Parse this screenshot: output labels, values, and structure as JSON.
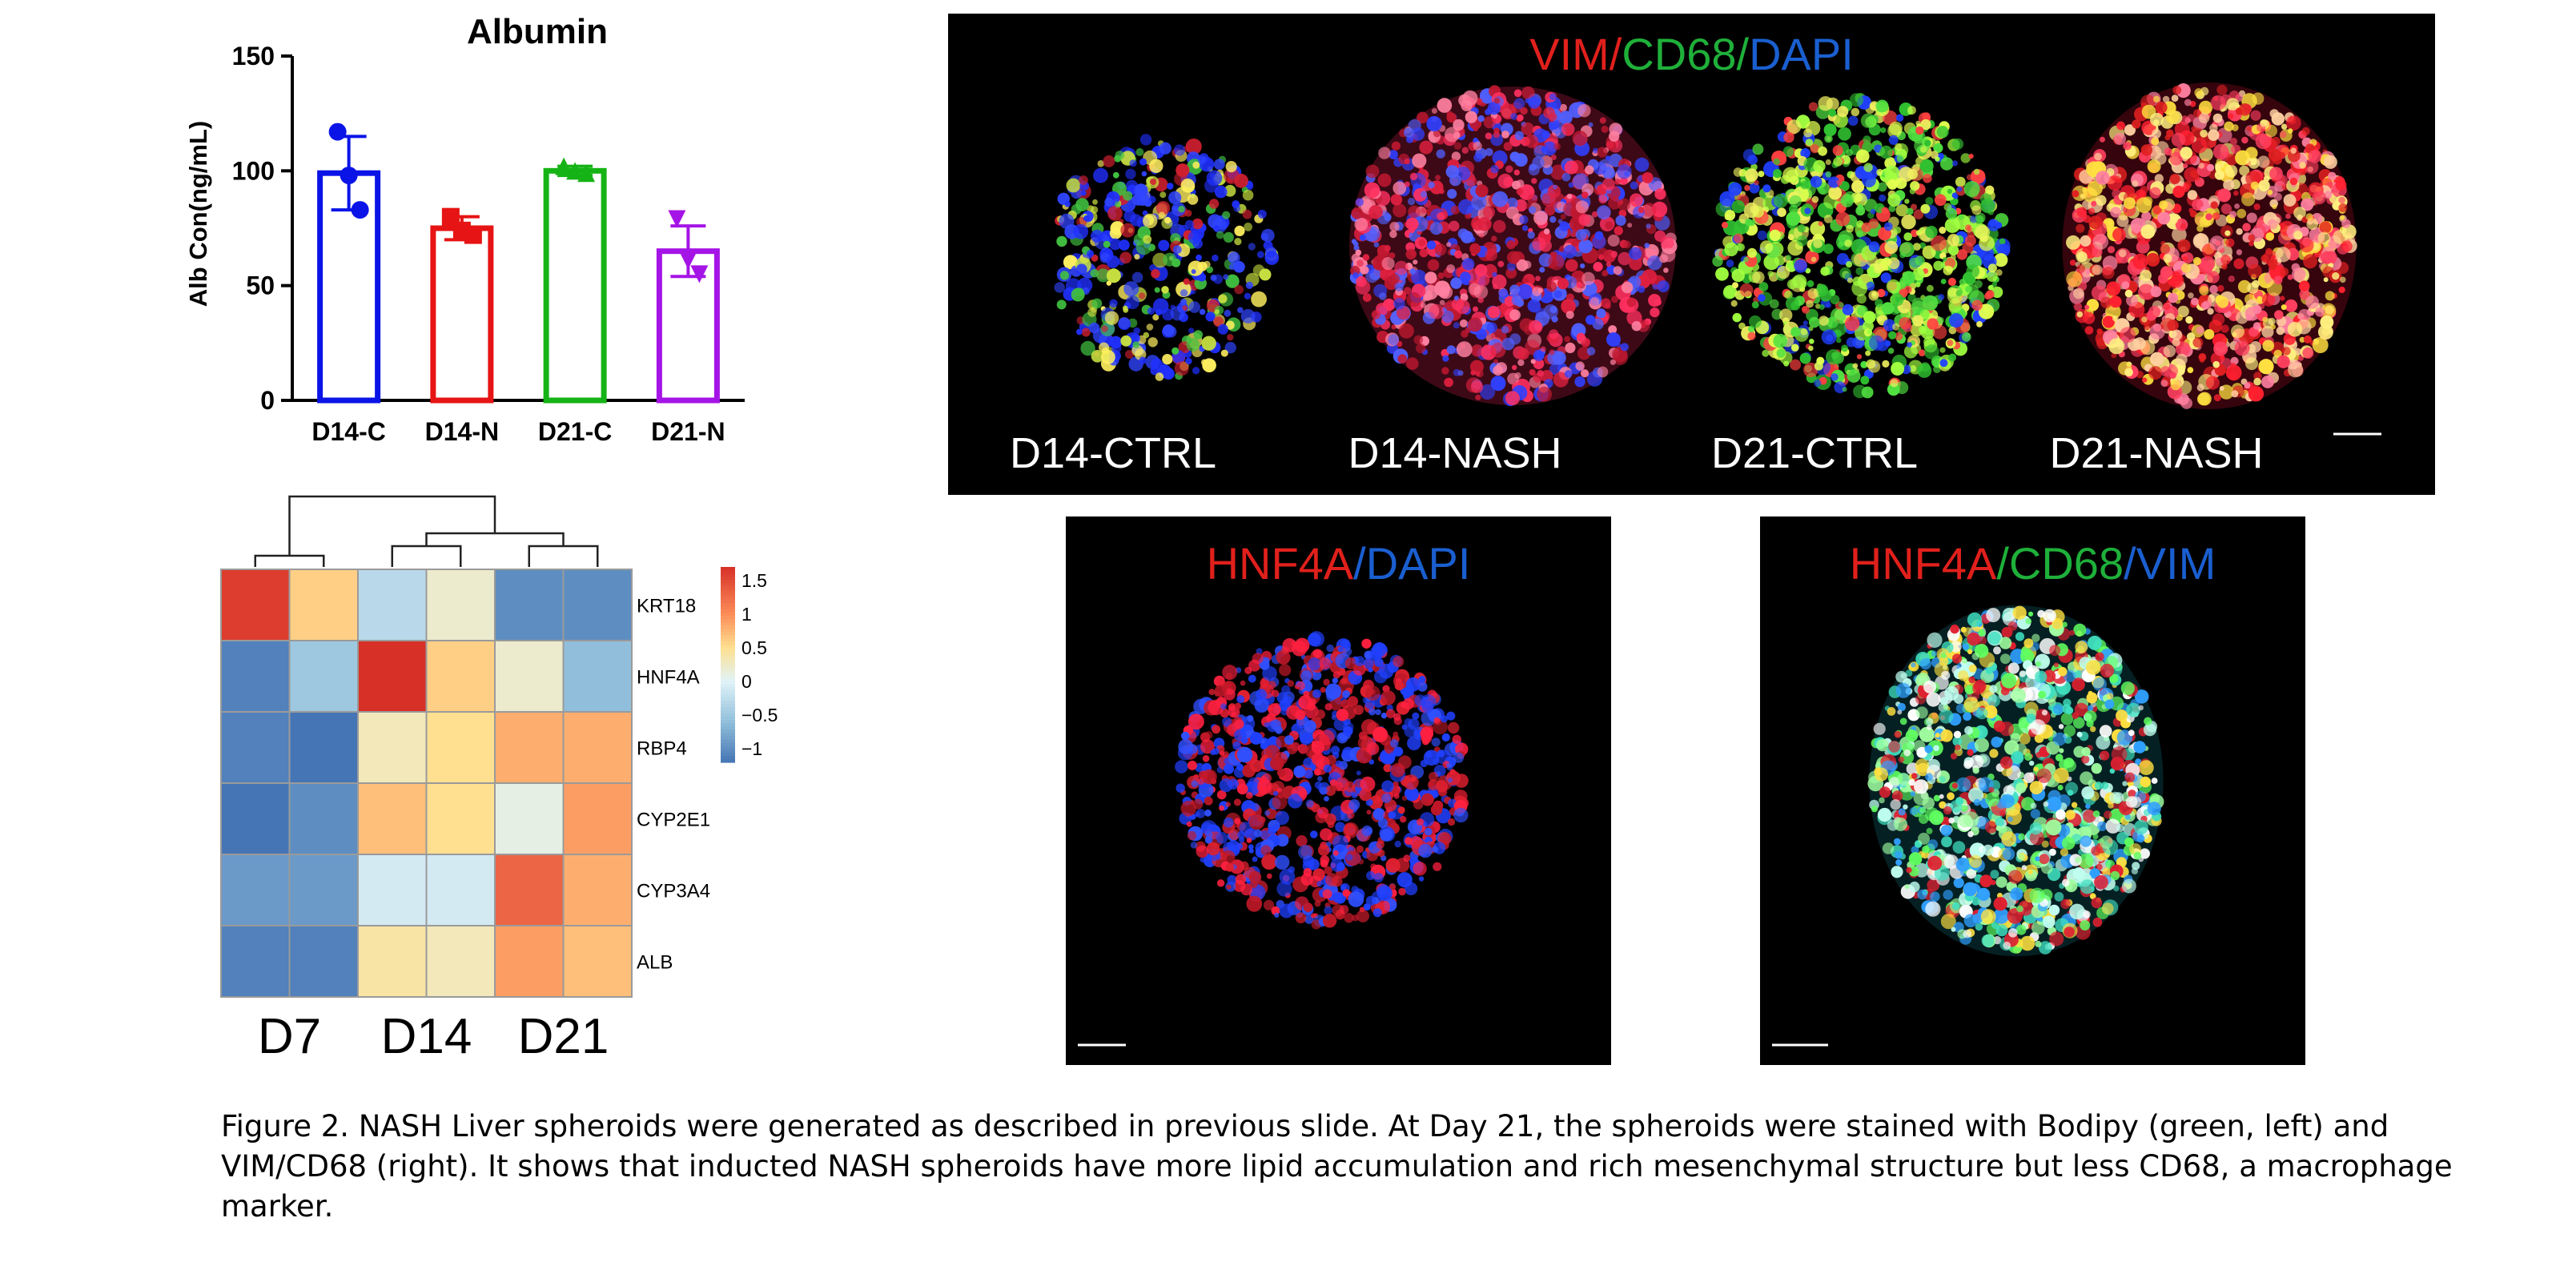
{
  "bar_chart": {
    "title": "Albumin",
    "ylabel": "Alb Con(ng/mL)"
  },
  "heatmap": {
    "column_groups": [
      "D7",
      "D14",
      "D21"
    ],
    "genes": [
      "KRT18",
      "HNF4A",
      "RBP4",
      "CYP2E1",
      "CYP3A4",
      "ALB"
    ],
    "colorbar_ticks": [
      "1.5",
      "1",
      "0.5",
      "0",
      "−0.5",
      "−1"
    ]
  },
  "micrographs": {
    "top": {
      "title_parts": [
        {
          "text": "VIM",
          "color": "#e0201c"
        },
        {
          "text": "/",
          "color": "#e0201c"
        },
        {
          "text": "CD68",
          "color": "#1fb03a"
        },
        {
          "text": "/",
          "color": "#1fb03a"
        },
        {
          "text": "DAPI",
          "color": "#1a5fd0"
        }
      ],
      "labels": [
        "D14-CTRL",
        "D14-NASH",
        "D21-CTRL",
        "D21-NASH"
      ]
    },
    "hnf4a": {
      "title_parts": [
        {
          "text": "HNF4A",
          "color": "#e0201c"
        },
        {
          "text": "/",
          "color": "#1a5fd0"
        },
        {
          "text": "DAPI",
          "color": "#1a5fd0"
        }
      ]
    },
    "triple": {
      "title_parts": [
        {
          "text": "HNF4A",
          "color": "#e0201c"
        },
        {
          "text": "/",
          "color": "#1fb03a"
        },
        {
          "text": "CD68",
          "color": "#1fb03a"
        },
        {
          "text": "/",
          "color": "#1a5fd0"
        },
        {
          "text": "VIM",
          "color": "#1a5fd0"
        }
      ]
    }
  },
  "caption": "Figure 2. NASH Liver spheroids were generated as described in previous slide. At Day 21, the spheroids were stained with Bodipy (green, left) and VIM/CD68 (right). It shows that inducted NASH spheroids have more lipid accumulation and rich mesenchymal structure but less CD68, a macrophage marker.",
  "chart_data": [
    {
      "type": "bar",
      "title": "Albumin",
      "xlabel": "",
      "ylabel": "Alb Con(ng/mL)",
      "categories": [
        "D14-C",
        "D14-N",
        "D21-C",
        "D21-N"
      ],
      "values": [
        99,
        75,
        100,
        65
      ],
      "errors": [
        16,
        5,
        2,
        11
      ],
      "points": [
        [
          117,
          98,
          83
        ],
        [
          80,
          74,
          72
        ],
        [
          102,
          100,
          99
        ],
        [
          79,
          61,
          55
        ]
      ],
      "colors": [
        "#0a14e6",
        "#e61414",
        "#16b316",
        "#a514e6"
      ],
      "markers": [
        "circle",
        "square",
        "triangle-up",
        "triangle-down"
      ],
      "ylim": [
        0,
        150
      ],
      "yticks": [
        0,
        50,
        100,
        150
      ],
      "grid": false
    },
    {
      "type": "heatmap",
      "rows": [
        "KRT18",
        "HNF4A",
        "RBP4",
        "CYP2E1",
        "CYP3A4",
        "ALB"
      ],
      "column_groups": [
        "D7",
        "D14",
        "D21"
      ],
      "values": [
        [
          1.6,
          0.6,
          -0.3,
          0.2,
          -1.0,
          -1.0
        ],
        [
          -1.1,
          -0.5,
          1.7,
          0.6,
          0.2,
          -0.6
        ],
        [
          -1.1,
          -1.2,
          0.3,
          0.5,
          0.8,
          0.8
        ],
        [
          -1.2,
          -1.0,
          0.7,
          0.5,
          0.1,
          0.9
        ],
        [
          -0.9,
          -0.9,
          -0.1,
          -0.1,
          1.3,
          0.8
        ],
        [
          -1.1,
          -1.1,
          0.4,
          0.3,
          0.9,
          0.7
        ]
      ],
      "colorbar_range": [
        -1.2,
        1.7
      ],
      "colorbar_ticks": [
        1.5,
        1,
        0.5,
        0,
        -0.5,
        -1
      ],
      "dendrogram": "columns"
    }
  ]
}
